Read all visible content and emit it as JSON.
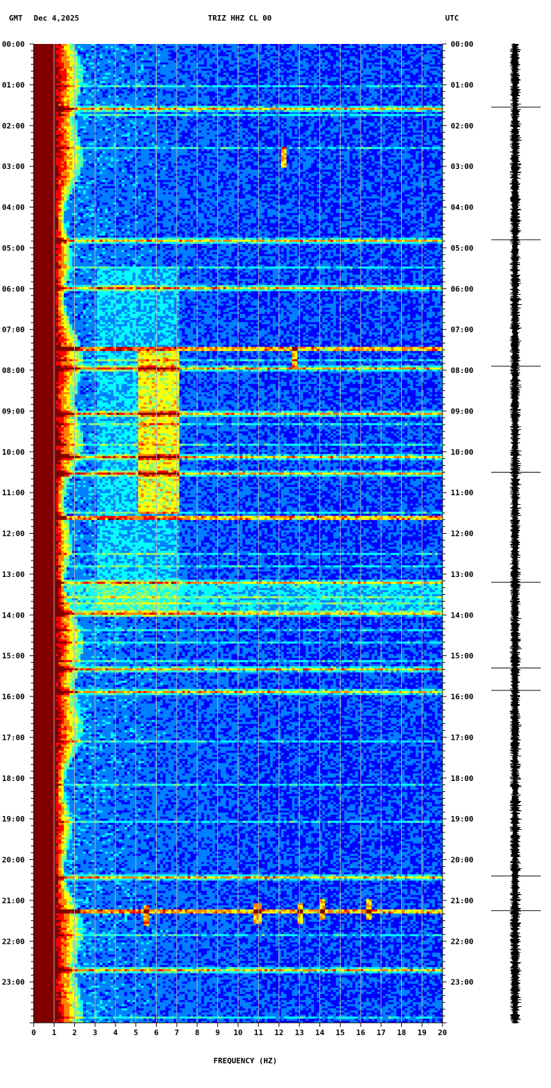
{
  "header": {
    "timezone_left": "GMT",
    "date": "Dec 4,2025",
    "station": "TRIZ HHZ CL 00",
    "timezone_right": "UTC"
  },
  "chart_data": {
    "type": "heatmap",
    "title": "TRIZ HHZ CL 00",
    "xlabel": "FREQUENCY (HZ)",
    "ylabel": "",
    "xlim": [
      0,
      20
    ],
    "ylim_hours": [
      0,
      24
    ],
    "x_ticks": [
      "0",
      "1",
      "2",
      "3",
      "4",
      "5",
      "6",
      "7",
      "8",
      "9",
      "10",
      "11",
      "12",
      "13",
      "14",
      "15",
      "16",
      "17",
      "18",
      "19",
      "20"
    ],
    "y_ticks_left": [
      "00:00",
      "01:00",
      "02:00",
      "03:00",
      "04:00",
      "05:00",
      "06:00",
      "07:00",
      "08:00",
      "09:00",
      "10:00",
      "11:00",
      "12:00",
      "13:00",
      "14:00",
      "15:00",
      "16:00",
      "17:00",
      "18:00",
      "19:00",
      "20:00",
      "21:00",
      "22:00",
      "23:00"
    ],
    "y_ticks_right": [
      "00:00",
      "01:00",
      "02:00",
      "03:00",
      "04:00",
      "05:00",
      "06:00",
      "07:00",
      "08:00",
      "09:00",
      "10:00",
      "11:00",
      "12:00",
      "13:00",
      "14:00",
      "15:00",
      "16:00",
      "17:00",
      "18:00",
      "19:00",
      "20:00",
      "21:00",
      "22:00",
      "23:00"
    ],
    "grid": true,
    "colormap": [
      "#00007f",
      "#0000ff",
      "#0080ff",
      "#00ffff",
      "#80ff80",
      "#ffff00",
      "#ff8000",
      "#ff0000",
      "#800000"
    ],
    "low_frequency_saturation_hz": 1.0,
    "high_energy_band_hz": [
      5,
      7
    ],
    "high_energy_band_hours": [
      7.5,
      11.5
    ],
    "broadband_lines_hours": [
      1.55,
      4.8,
      5.98,
      7.45,
      7.92,
      9.05,
      10.1,
      10.5,
      11.6,
      13.2,
      13.95,
      15.3,
      15.85,
      20.4,
      21.25,
      22.7
    ],
    "transient_events": [
      {
        "freq_hz": 12.2,
        "hour": 2.75
      },
      {
        "freq_hz": 12.7,
        "hour": 7.65
      },
      {
        "freq_hz": 5.4,
        "hour": 21.35
      },
      {
        "freq_hz": 10.9,
        "hour": 21.3
      },
      {
        "freq_hz": 13.0,
        "hour": 21.3
      },
      {
        "freq_hz": 14.1,
        "hour": 21.2
      },
      {
        "freq_hz": 16.3,
        "hour": 21.2
      }
    ],
    "seismogram_spikes_hours": [
      1.55,
      4.8,
      7.9,
      10.5,
      13.2,
      15.3,
      15.85,
      20.4,
      21.25
    ],
    "colors": {
      "background": "#ffffff",
      "grid": "#b4b4b4",
      "trace": "#000000"
    }
  }
}
